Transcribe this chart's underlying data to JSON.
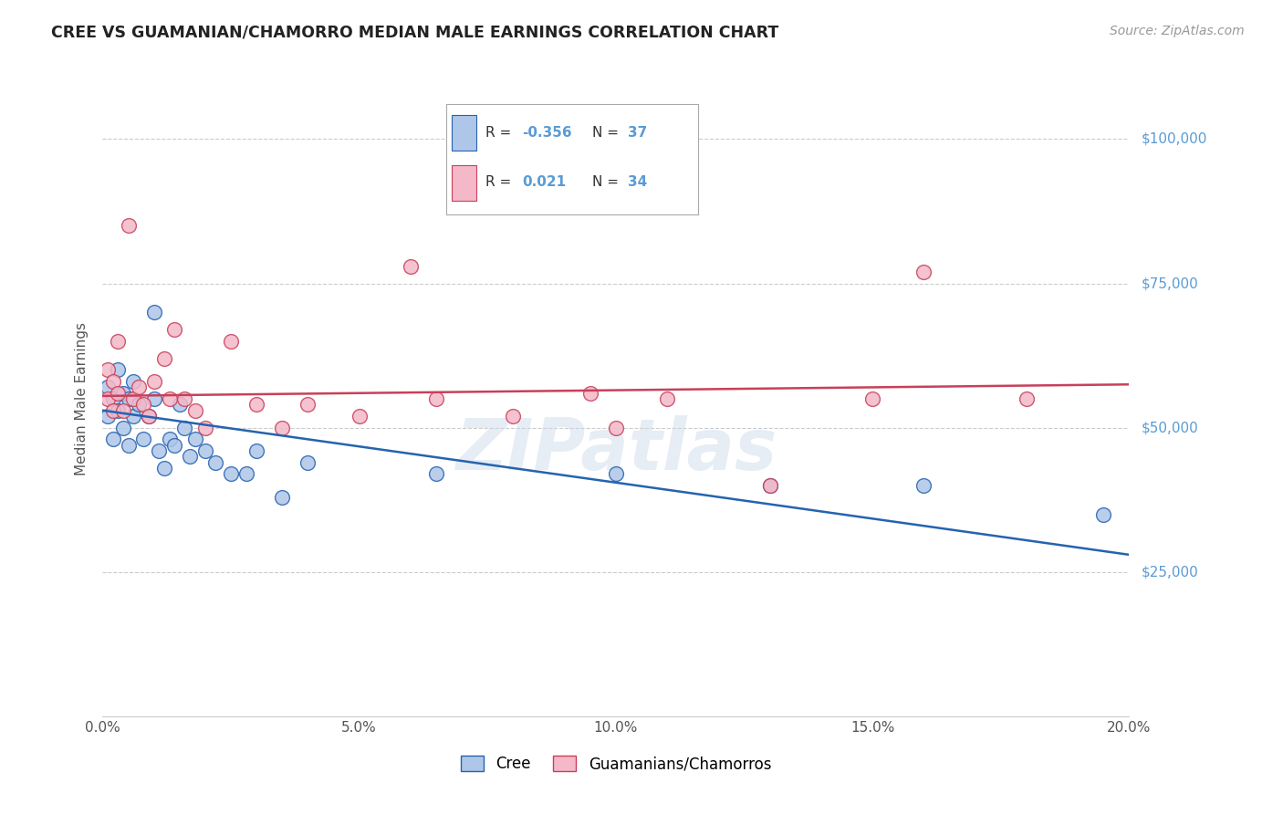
{
  "title": "CREE VS GUAMANIAN/CHAMORRO MEDIAN MALE EARNINGS CORRELATION CHART",
  "source": "Source: ZipAtlas.com",
  "ylabel": "Median Male Earnings",
  "y_ticks": [
    0,
    25000,
    50000,
    75000,
    100000
  ],
  "xlim": [
    0.0,
    0.2
  ],
  "ylim": [
    0,
    110000
  ],
  "legend_r_cree": "-0.356",
  "legend_n_cree": "37",
  "legend_r_guam": "0.021",
  "legend_n_guam": "34",
  "color_cree": "#aec6e8",
  "color_guam": "#f4b8c8",
  "line_color_cree": "#2563b0",
  "line_color_guam": "#c8405a",
  "background_color": "#ffffff",
  "watermark": "ZIPatlas",
  "cree_x": [
    0.001,
    0.001,
    0.002,
    0.002,
    0.003,
    0.003,
    0.004,
    0.004,
    0.005,
    0.005,
    0.006,
    0.006,
    0.007,
    0.008,
    0.009,
    0.01,
    0.01,
    0.011,
    0.012,
    0.013,
    0.014,
    0.015,
    0.016,
    0.017,
    0.018,
    0.02,
    0.022,
    0.025,
    0.028,
    0.03,
    0.035,
    0.04,
    0.065,
    0.1,
    0.13,
    0.16,
    0.195
  ],
  "cree_y": [
    57000,
    52000,
    55000,
    48000,
    60000,
    53000,
    56000,
    50000,
    55000,
    47000,
    58000,
    52000,
    54000,
    48000,
    52000,
    55000,
    70000,
    46000,
    43000,
    48000,
    47000,
    54000,
    50000,
    45000,
    48000,
    46000,
    44000,
    42000,
    42000,
    46000,
    38000,
    44000,
    42000,
    42000,
    40000,
    40000,
    35000
  ],
  "guam_x": [
    0.001,
    0.001,
    0.002,
    0.002,
    0.003,
    0.003,
    0.004,
    0.005,
    0.006,
    0.007,
    0.008,
    0.009,
    0.01,
    0.012,
    0.013,
    0.014,
    0.016,
    0.018,
    0.02,
    0.025,
    0.03,
    0.035,
    0.04,
    0.05,
    0.06,
    0.065,
    0.08,
    0.095,
    0.1,
    0.11,
    0.13,
    0.15,
    0.16,
    0.18
  ],
  "guam_y": [
    55000,
    60000,
    58000,
    53000,
    56000,
    65000,
    53000,
    85000,
    55000,
    57000,
    54000,
    52000,
    58000,
    62000,
    55000,
    67000,
    55000,
    53000,
    50000,
    65000,
    54000,
    50000,
    54000,
    52000,
    78000,
    55000,
    52000,
    56000,
    50000,
    55000,
    40000,
    55000,
    77000,
    55000
  ]
}
